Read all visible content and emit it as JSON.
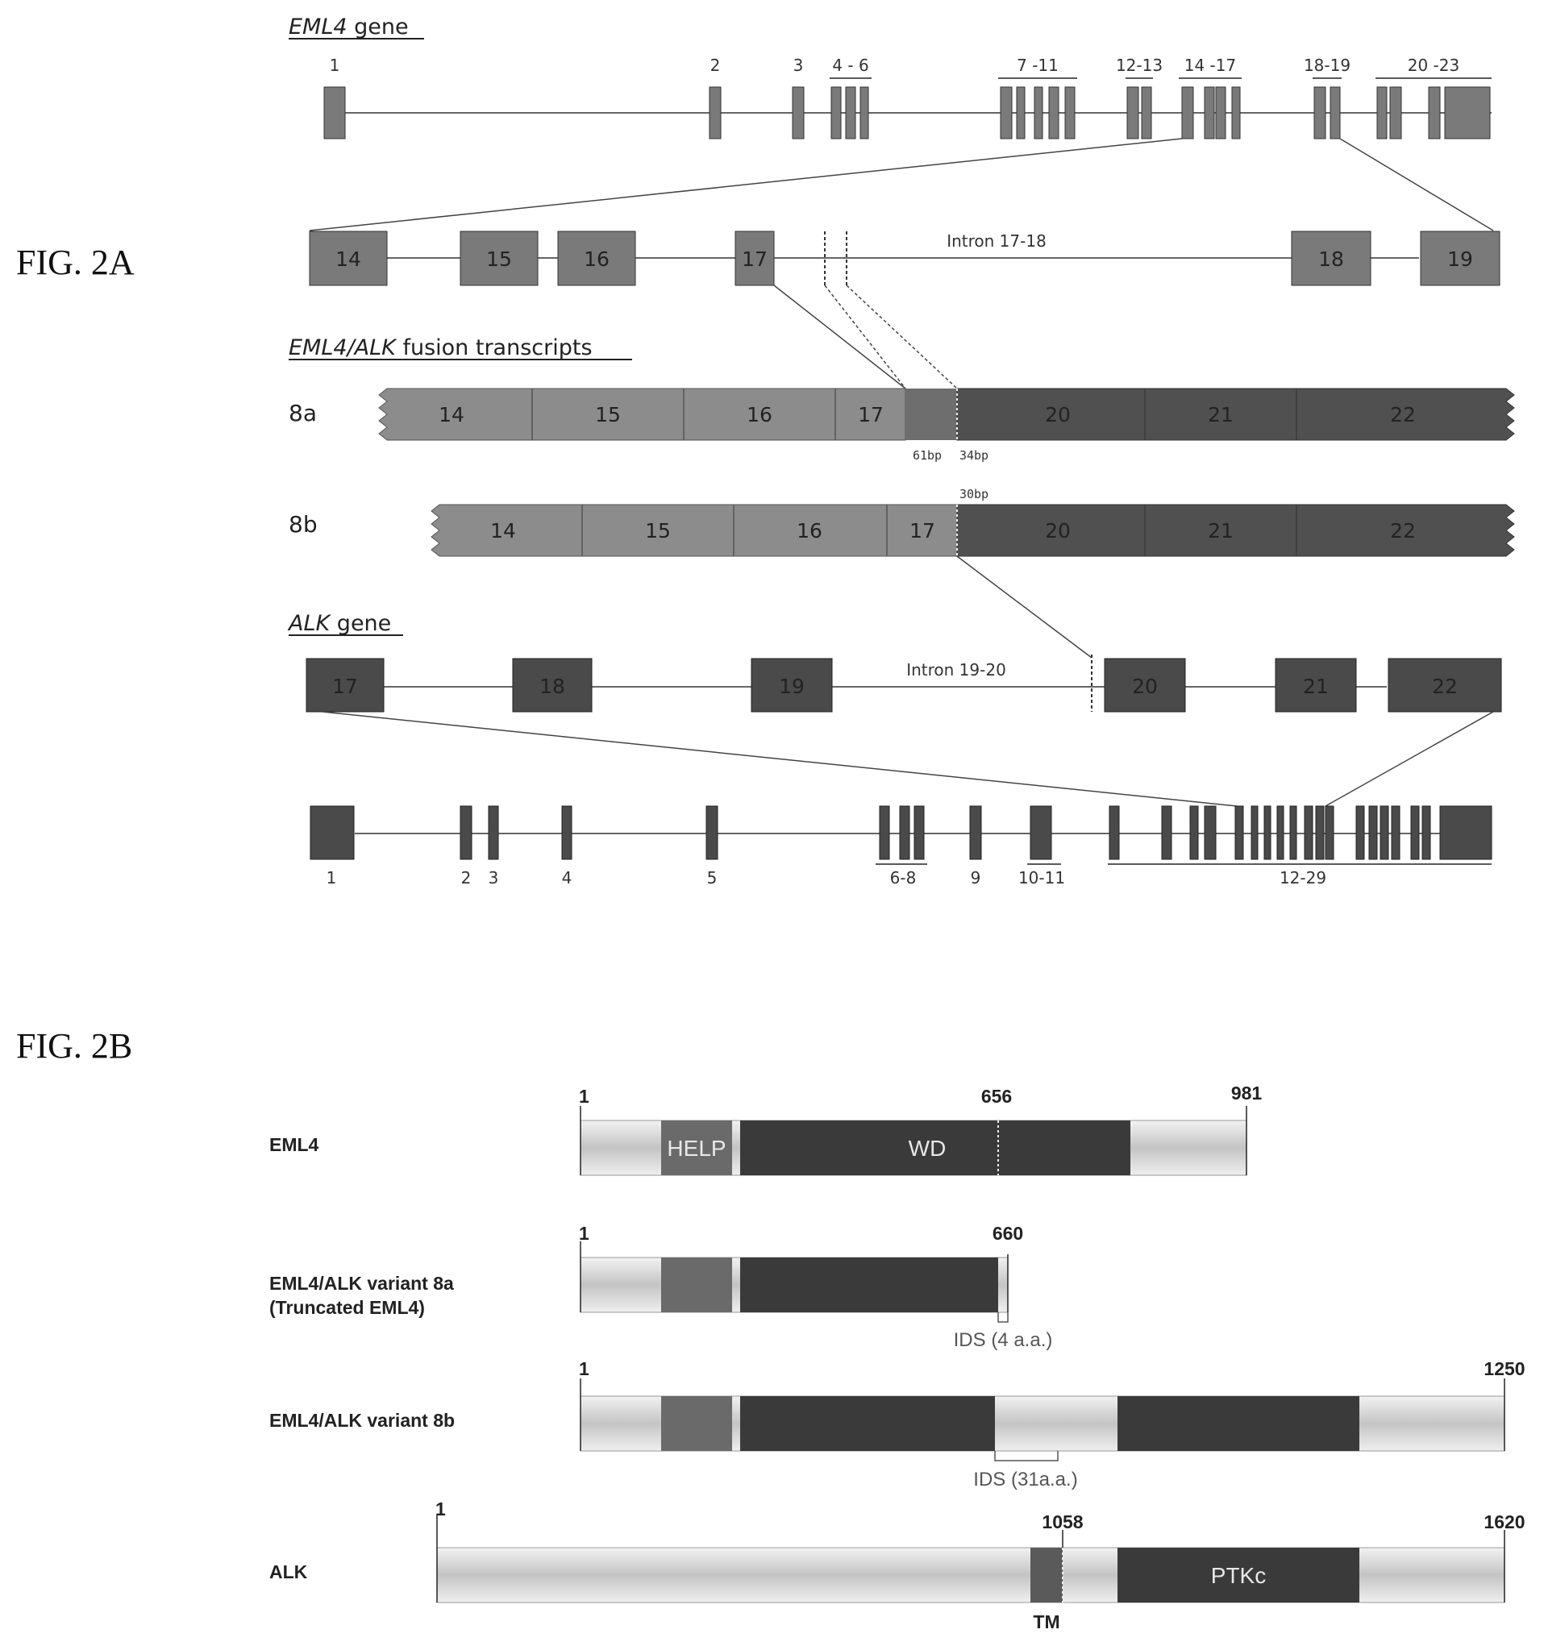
{
  "fig_2a": {
    "label": "FIG. 2A",
    "eml4_gene": {
      "title_italic": "EML4",
      "title_rest": " gene",
      "exon_group_labels": [
        "1",
        "2",
        "3",
        "4 - 6",
        "7 -11",
        "12-13",
        "14 -17",
        "18-19",
        "20 -23"
      ]
    },
    "eml4_zoom": {
      "exons": [
        "14",
        "15",
        "16",
        "17",
        "18",
        "19"
      ],
      "intron_label": "Intron 17-18"
    },
    "fusion": {
      "title_italic": "EML4/ALK",
      "title_rest": " fusion transcripts",
      "variant_8a": {
        "label": "8a",
        "eml4_segments": [
          "14",
          "15",
          "16",
          "17"
        ],
        "alk_segments": [
          "20",
          "21",
          "22"
        ],
        "insert_left": "61bp",
        "insert_right": "34bp"
      },
      "variant_8b": {
        "label": "8b",
        "eml4_segments": [
          "14",
          "15",
          "16",
          "17"
        ],
        "alk_segments": [
          "20",
          "21",
          "22"
        ],
        "insert": "30bp"
      }
    },
    "alk_gene": {
      "title_italic": "ALK",
      "title_rest": " gene",
      "exons": [
        "17",
        "18",
        "19",
        "20",
        "21",
        "22"
      ],
      "intron_label": "Intron 19-20",
      "full_gene_labels": [
        "1",
        "2",
        "3",
        "4",
        "5",
        "6-8",
        "9",
        "10-11",
        "12-29"
      ]
    }
  },
  "fig_2b": {
    "label": "FIG. 2B",
    "proteins": [
      {
        "name": "EML4",
        "start": "1",
        "mark": "656",
        "end": "981",
        "domains": [
          "HELP",
          "WD"
        ]
      },
      {
        "name_line1": "EML4/ALK variant 8a",
        "name_line2": "(Truncated EML4)",
        "start": "1",
        "end": "660",
        "ids": "IDS (4 a.a.)"
      },
      {
        "name": "EML4/ALK variant 8b",
        "start": "1",
        "end": "1250",
        "ids": "IDS (31a.a.)"
      },
      {
        "name": "ALK",
        "start": "1",
        "mark": "1058",
        "end": "1620",
        "domains": [
          "PTKc"
        ],
        "tm": "TM"
      }
    ]
  },
  "colors": {
    "eml4_exon": "#7a7a7a",
    "eml4_fusion": "#8c8c8c",
    "alk_exon": "#4a4a4a",
    "alk_fusion": "#505050",
    "help_domain": "#6a6a6a",
    "wd_domain": "#3a3a3a",
    "protein_body": "#cfcfcf"
  }
}
